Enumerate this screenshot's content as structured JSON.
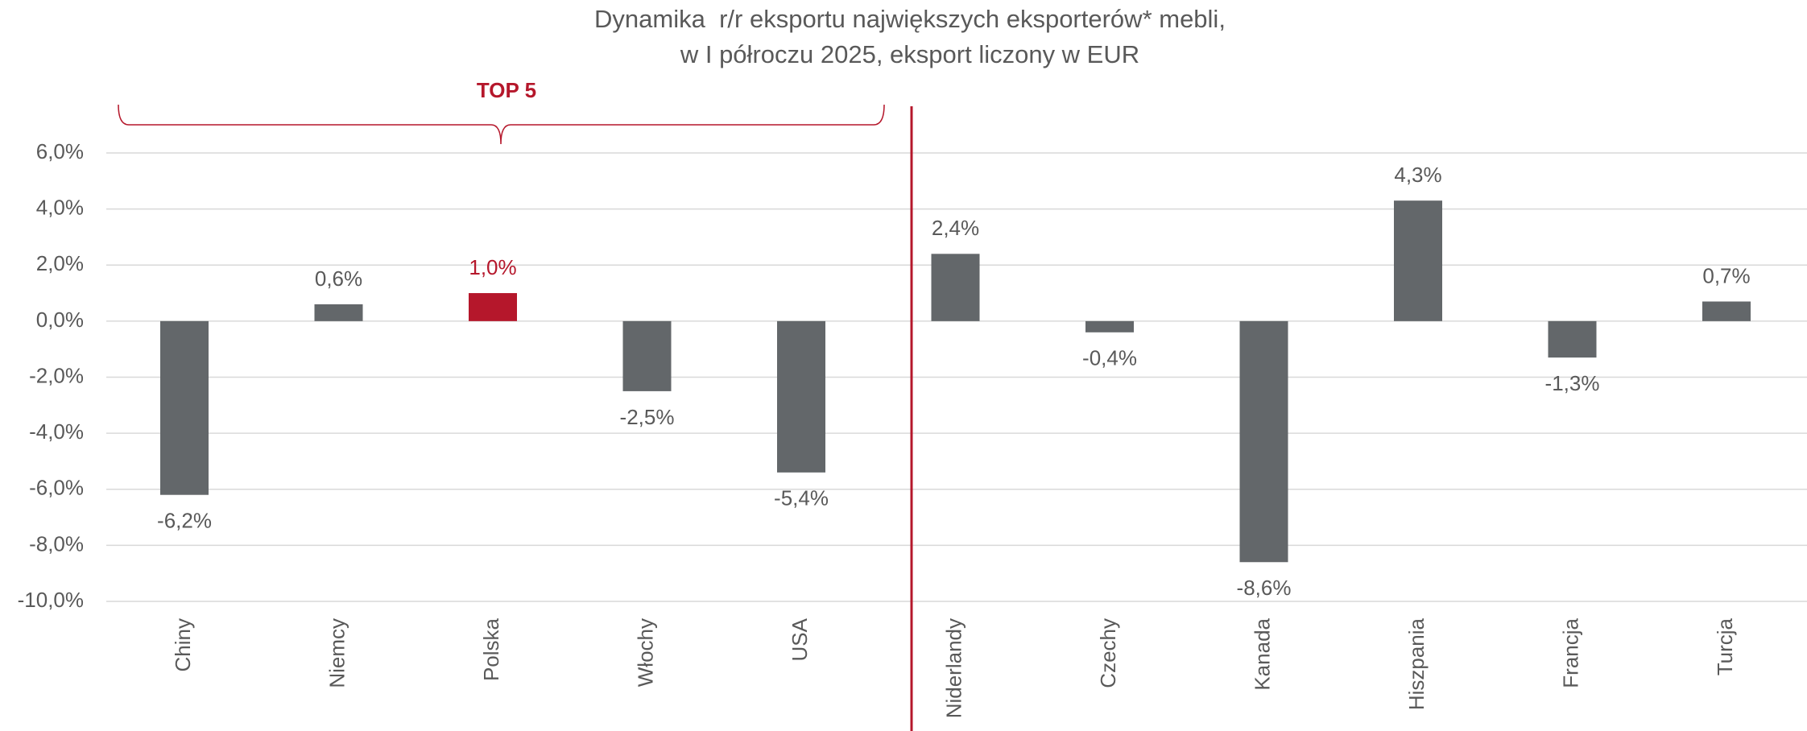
{
  "chart_data": {
    "type": "bar",
    "title": [
      "Dynamika  r/r eksportu największych eksporterów* mebli,",
      "w I półroczu 2025, eksport liczony w EUR"
    ],
    "annotation": "TOP 5",
    "categories": [
      "Chiny",
      "Niemcy",
      "Polska",
      "Włochy",
      "USA",
      "Niderlandy",
      "Czechy",
      "Kanada",
      "Hiszpania",
      "Francja",
      "Turcja"
    ],
    "values": [
      -6.2,
      0.6,
      1.0,
      -2.5,
      -5.4,
      2.4,
      -0.4,
      -8.6,
      4.3,
      -1.3,
      0.7
    ],
    "value_labels": [
      "-6,2%",
      "0,6%",
      "1,0%",
      "-2,5%",
      "-5,4%",
      "2,4%",
      "-0,4%",
      "-8,6%",
      "4,3%",
      "-1,3%",
      "0,7%"
    ],
    "colors": [
      "#63676a",
      "#63676a",
      "#b5172b",
      "#63676a",
      "#63676a",
      "#63676a",
      "#63676a",
      "#63676a",
      "#63676a",
      "#63676a",
      "#63676a"
    ],
    "ylim": [
      -10,
      6
    ],
    "yticks": [
      {
        "value": 6,
        "label": "6,0%"
      },
      {
        "value": 4,
        "label": "4,0%"
      },
      {
        "value": 2,
        "label": "2,0%"
      },
      {
        "value": 0,
        "label": "0,0%"
      },
      {
        "value": -2,
        "label": "-2,0%"
      },
      {
        "value": -4,
        "label": "-4,0%"
      },
      {
        "value": -6,
        "label": "-6,0%"
      },
      {
        "value": -8,
        "label": "-8,0%"
      },
      {
        "value": -10,
        "label": "-10,0%"
      }
    ],
    "grid": true
  }
}
